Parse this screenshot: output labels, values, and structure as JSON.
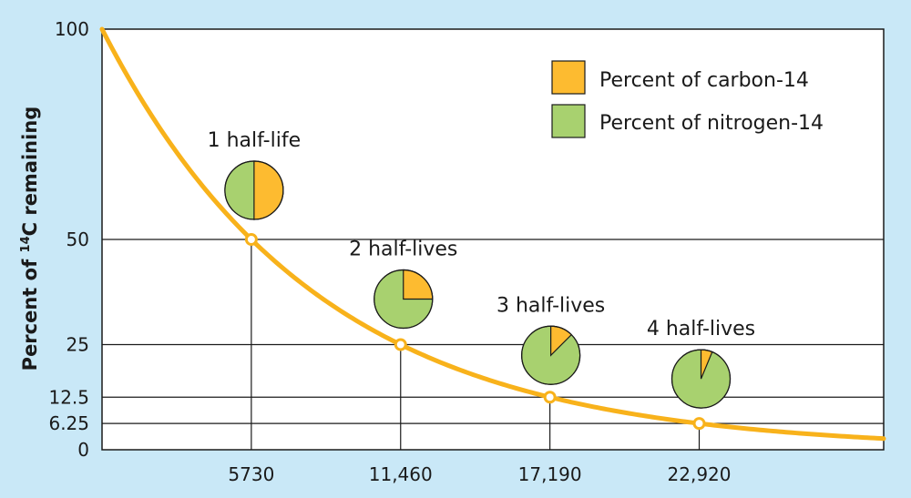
{
  "chart_data": {
    "type": "line",
    "ylabel_prefix": "Percent of ",
    "ylabel_superscript": "14",
    "ylabel_suffix": "C remaining",
    "xlabel": "",
    "x_ticks": [
      5730,
      11460,
      17190,
      22920
    ],
    "x_tick_labels": [
      "5730",
      "11,460",
      "17,190",
      "22,920"
    ],
    "y_ticks": [
      0,
      6.25,
      12.5,
      25,
      50,
      100
    ],
    "y_tick_labels": [
      "0",
      "6.25",
      "12.5",
      "25",
      "50",
      "100"
    ],
    "xlim": [
      0,
      30000
    ],
    "ylim": [
      0,
      100
    ],
    "half_life": 5730,
    "series": [
      {
        "x": [
          0,
          5730,
          11460,
          17190,
          22920
        ],
        "y": [
          100,
          50,
          25,
          12.5,
          6.25
        ]
      }
    ],
    "half_life_markers": [
      {
        "x": 5730,
        "y": 50,
        "label": "1 half-life",
        "carbon_fraction": 0.5
      },
      {
        "x": 11460,
        "y": 25,
        "label": "2 half-lives",
        "carbon_fraction": 0.25
      },
      {
        "x": 17190,
        "y": 12.5,
        "label": "3 half-lives",
        "carbon_fraction": 0.125
      },
      {
        "x": 22920,
        "y": 6.25,
        "label": "4 half-lives",
        "carbon_fraction": 0.0625
      }
    ],
    "legend": {
      "placement": "top-right",
      "items": [
        {
          "label": "Percent of carbon-14",
          "color": "#fdbb30"
        },
        {
          "label": "Percent of nitrogen-14",
          "color": "#a8d16f"
        }
      ]
    },
    "colors": {
      "curve": "#f8b21b",
      "carbon": "#fdbb30",
      "nitrogen": "#a8d16f",
      "background": "#c9e8f7",
      "plot_background": "#ffffff"
    }
  }
}
